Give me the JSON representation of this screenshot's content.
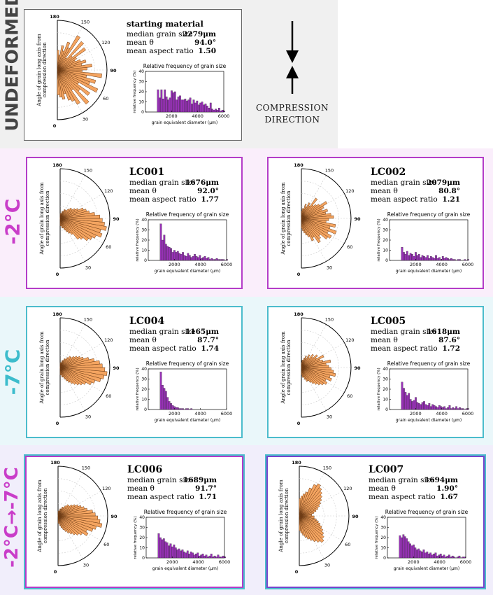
{
  "compression_label_line1": "COMPRESSION",
  "compression_label_line2": "DIRECTION",
  "polar_ylabel_line1": "Angle of grain long axis from",
  "polar_ylabel_line2": "compression direction",
  "hist_title": "Relative frequency of grain size",
  "hist_ylabel": "relative frequency (%)",
  "hist_xlabel": "grain equivalent diameter (μm)",
  "stat_labels": {
    "median": "median grain size",
    "theta": "mean θ",
    "aspect": "mean aspect ratio"
  },
  "colors": {
    "rose": "#f4a460",
    "hist": "#9932b8",
    "magenta": "#c93dc9",
    "cyan": "#3cbccc",
    "band_pink": "#faeefb",
    "band_cyan": "#eaf7fa",
    "band_lav": "#f1eefb",
    "band_gray": "#f0f0f0"
  },
  "row_labels": [
    {
      "text": "UNDEFORMED",
      "color": "#444444"
    },
    {
      "text": "-2°C",
      "color": "#c93dc9"
    },
    {
      "text": "-7°C",
      "color": "#3cbccc"
    },
    {
      "text": "-2°C→-7°C",
      "color": "#c93dc9"
    }
  ],
  "chart_data": [
    {
      "type": "bar",
      "name": "starting material",
      "median": "2279μm",
      "theta": "94.0°",
      "aspect": "1.50",
      "polar": {
        "ticks": [
          "0",
          "30",
          "60",
          "90",
          "120",
          "150",
          "180"
        ],
        "radii": [
          0.5,
          0.55,
          0.6,
          0.5,
          0.65,
          0.7,
          0.8,
          0.5,
          0.9,
          0.6,
          0.8,
          0.5,
          0.9,
          0.7,
          0.8,
          0.6,
          0.9,
          0.5,
          0.6,
          0.7,
          0.5,
          0.6,
          0.5,
          0.4,
          0.45,
          0.7,
          0.4,
          0.75,
          0.3,
          0.8,
          0.5,
          0.6,
          0.4,
          0.5,
          0.3,
          0.4
        ]
      },
      "hist": {
        "ylim": [
          0,
          40
        ],
        "xlim": [
          0,
          6000
        ],
        "yticks": [
          0,
          10,
          20,
          30,
          40
        ],
        "xticks": [
          2000,
          4000,
          6000
        ],
        "values": [
          22,
          14,
          22,
          13,
          22,
          15,
          12,
          14,
          21,
          19,
          20,
          12,
          15,
          16,
          12,
          12,
          13,
          11,
          12,
          14,
          8,
          12,
          9,
          11,
          7,
          9,
          10,
          7,
          8,
          6,
          4,
          9,
          3,
          2,
          3,
          2,
          4,
          1,
          2,
          1
        ]
      }
    },
    {
      "type": "bar",
      "name": "LC001",
      "median": "1676μm",
      "theta": "92.0°",
      "aspect": "1.77",
      "polar": {
        "ticks": [
          "0",
          "30",
          "60",
          "90",
          "120",
          "150",
          "180"
        ],
        "radii": [
          0.15,
          0.15,
          0.2,
          0.2,
          0.25,
          0.3,
          0.35,
          0.4,
          0.55,
          0.6,
          0.7,
          0.75,
          0.8,
          0.9,
          0.85,
          0.95,
          0.9,
          0.85,
          0.8,
          0.7,
          0.6,
          0.55,
          0.5,
          0.4,
          0.35,
          0.3,
          0.3,
          0.25,
          0.2,
          0.2,
          0.2,
          0.15,
          0.15,
          0.1,
          0.1,
          0.1
        ]
      },
      "hist": {
        "ylim": [
          0,
          40
        ],
        "xlim": [
          0,
          6000
        ],
        "yticks": [
          0,
          10,
          20,
          30,
          40
        ],
        "xticks": [
          2000,
          4000,
          6000
        ],
        "values": [
          36,
          20,
          25,
          16,
          14,
          13,
          12,
          8,
          10,
          8,
          9,
          7,
          6,
          8,
          5,
          4,
          7,
          5,
          3,
          4,
          6,
          4,
          3,
          5,
          2,
          3,
          4,
          2,
          3,
          1,
          2,
          1,
          1,
          2,
          1,
          1,
          1,
          1,
          0,
          1
        ]
      }
    },
    {
      "type": "bar",
      "name": "LC002",
      "median": "2079μm",
      "theta": "80.8°",
      "aspect": "1.21",
      "polar": {
        "ticks": [
          "0",
          "30",
          "60",
          "90",
          "120",
          "150",
          "180"
        ],
        "radii": [
          0.2,
          0.25,
          0.3,
          0.35,
          0.4,
          0.5,
          0.45,
          0.6,
          0.55,
          0.5,
          0.65,
          0.7,
          0.6,
          0.75,
          0.6,
          0.7,
          0.5,
          0.55,
          0.65,
          0.6,
          0.5,
          0.55,
          0.45,
          0.5,
          0.6,
          0.45,
          0.4,
          0.35,
          0.5,
          0.3,
          0.35,
          0.25,
          0.3,
          0.2,
          0.2,
          0.15
        ]
      },
      "hist": {
        "ylim": [
          0,
          40
        ],
        "xlim": [
          0,
          6000
        ],
        "yticks": [
          0,
          10,
          20,
          30,
          40
        ],
        "xticks": [
          2000,
          4000,
          6000
        ],
        "values": [
          13,
          8,
          6,
          9,
          5,
          7,
          6,
          4,
          8,
          5,
          6,
          3,
          5,
          4,
          3,
          5,
          2,
          4,
          3,
          2,
          5,
          2,
          3,
          1,
          4,
          2,
          3,
          2,
          1,
          2,
          1,
          1,
          0,
          1,
          1,
          0,
          0,
          1,
          0,
          1
        ]
      }
    },
    {
      "type": "bar",
      "name": "LC004",
      "median": "1165μm",
      "theta": "87.7°",
      "aspect": "1.74",
      "polar": {
        "ticks": [
          "0",
          "30",
          "60",
          "90",
          "120",
          "150",
          "180"
        ],
        "radii": [
          0.15,
          0.15,
          0.2,
          0.2,
          0.25,
          0.3,
          0.35,
          0.4,
          0.45,
          0.5,
          0.55,
          0.6,
          0.7,
          0.75,
          0.85,
          0.9,
          0.95,
          0.9,
          0.85,
          0.8,
          0.7,
          0.6,
          0.5,
          0.45,
          0.4,
          0.35,
          0.3,
          0.3,
          0.25,
          0.2,
          0.2,
          0.15,
          0.15,
          0.1,
          0.1,
          0.1
        ]
      },
      "hist": {
        "ylim": [
          0,
          40
        ],
        "xlim": [
          0,
          6000
        ],
        "yticks": [
          0,
          10,
          20,
          30,
          40
        ],
        "xticks": [
          2000,
          4000,
          6000
        ],
        "values": [
          37,
          24,
          21,
          18,
          12,
          8,
          6,
          4,
          3,
          2,
          2,
          1,
          1,
          1,
          0,
          1,
          1,
          0,
          1,
          0,
          0,
          0,
          0,
          0,
          0,
          0,
          0,
          0,
          0,
          0,
          0,
          0,
          0,
          0,
          0,
          0,
          0,
          0,
          0,
          0
        ]
      }
    },
    {
      "type": "bar",
      "name": "LC005",
      "median": "1618μm",
      "theta": "87.6°",
      "aspect": "1.72",
      "polar": {
        "ticks": [
          "0",
          "30",
          "60",
          "90",
          "120",
          "150",
          "180"
        ],
        "radii": [
          0.15,
          0.2,
          0.2,
          0.25,
          0.3,
          0.3,
          0.35,
          0.4,
          0.45,
          0.5,
          0.55,
          0.6,
          0.55,
          0.65,
          0.6,
          0.7,
          0.65,
          0.6,
          0.55,
          0.5,
          0.6,
          0.45,
          0.4,
          0.5,
          0.35,
          0.4,
          0.3,
          0.35,
          0.25,
          0.3,
          0.2,
          0.25,
          0.2,
          0.15,
          0.15,
          0.1
        ]
      },
      "hist": {
        "ylim": [
          0,
          40
        ],
        "xlim": [
          0,
          6000
        ],
        "yticks": [
          0,
          10,
          20,
          30,
          40
        ],
        "xticks": [
          2000,
          4000,
          6000
        ],
        "values": [
          27,
          21,
          17,
          14,
          16,
          10,
          8,
          9,
          12,
          7,
          6,
          5,
          7,
          8,
          5,
          4,
          6,
          3,
          5,
          4,
          3,
          2,
          4,
          3,
          2,
          3,
          1,
          2,
          4,
          1,
          2,
          1,
          3,
          1,
          2,
          1,
          1,
          0,
          1,
          1
        ]
      }
    },
    {
      "type": "bar",
      "name": "LC006",
      "median": "1689μm",
      "theta": "91.7°",
      "aspect": "1.71",
      "polar": {
        "ticks": [
          "0",
          "30",
          "60",
          "90",
          "120",
          "150",
          "180"
        ],
        "radii": [
          0.15,
          0.15,
          0.2,
          0.25,
          0.3,
          0.35,
          0.4,
          0.45,
          0.5,
          0.55,
          0.6,
          0.7,
          0.65,
          0.75,
          0.8,
          0.9,
          0.85,
          0.8,
          0.75,
          0.7,
          0.6,
          0.55,
          0.5,
          0.45,
          0.4,
          0.35,
          0.3,
          0.3,
          0.25,
          0.2,
          0.2,
          0.15,
          0.15,
          0.1,
          0.1,
          0.1
        ]
      },
      "hist": {
        "ylim": [
          0,
          40
        ],
        "xlim": [
          0,
          6000
        ],
        "yticks": [
          0,
          10,
          20,
          30,
          40
        ],
        "xticks": [
          2000,
          4000,
          6000
        ],
        "values": [
          24,
          20,
          18,
          19,
          16,
          15,
          12,
          14,
          11,
          13,
          10,
          8,
          9,
          7,
          8,
          6,
          5,
          7,
          4,
          6,
          5,
          3,
          4,
          5,
          2,
          3,
          4,
          2,
          3,
          1,
          2,
          4,
          1,
          2,
          1,
          3,
          1,
          1,
          2,
          1
        ]
      }
    },
    {
      "type": "bar",
      "name": "LC007",
      "median": "1694μm",
      "theta": "1.90°",
      "aspect": "1.67",
      "polar": {
        "ticks": [
          "0",
          "30",
          "60",
          "90",
          "120",
          "150",
          "180"
        ],
        "radii": [
          0.3,
          0.35,
          0.4,
          0.45,
          0.5,
          0.55,
          0.6,
          0.65,
          0.7,
          0.65,
          0.6,
          0.55,
          0.5,
          0.45,
          0.4,
          0.35,
          0.3,
          0.3,
          0.25,
          0.25,
          0.3,
          0.35,
          0.4,
          0.45,
          0.5,
          0.55,
          0.6,
          0.65,
          0.7,
          0.75,
          0.7,
          0.6,
          0.5,
          0.45,
          0.4,
          0.35
        ]
      },
      "hist": {
        "ylim": [
          0,
          40
        ],
        "xlim": [
          0,
          6000
        ],
        "yticks": [
          0,
          10,
          20,
          30,
          40
        ],
        "xticks": [
          2000,
          4000,
          6000
        ],
        "values": [
          22,
          20,
          23,
          21,
          19,
          16,
          14,
          12,
          13,
          10,
          8,
          9,
          7,
          6,
          8,
          5,
          6,
          4,
          5,
          3,
          4,
          5,
          2,
          3,
          4,
          2,
          3,
          1,
          2,
          3,
          1,
          2,
          1,
          0,
          1,
          2,
          0,
          1,
          1,
          0
        ]
      }
    }
  ]
}
